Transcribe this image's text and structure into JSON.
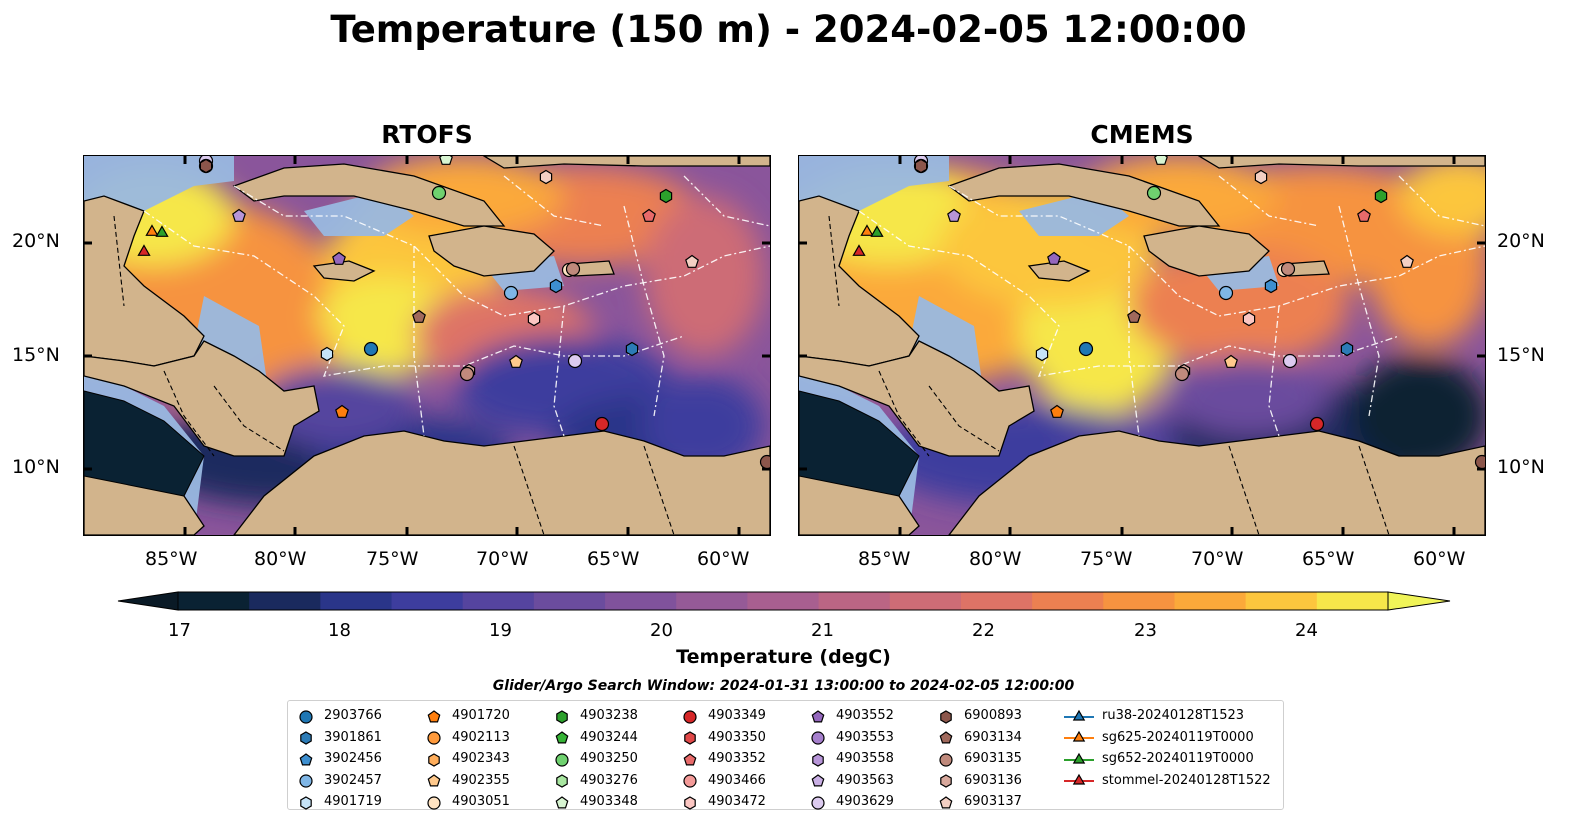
{
  "title": "Temperature (150 m) - 2024-02-05 12:00:00",
  "maps": [
    {
      "title": "RTOFS"
    },
    {
      "title": "CMEMS"
    }
  ],
  "lat_ticks": [
    "20°N",
    "15°N",
    "10°N"
  ],
  "lon_ticks": [
    "85°W",
    "80°W",
    "75°W",
    "70°W",
    "65°W",
    "60°W"
  ],
  "colorbar": {
    "label": "Temperature (degC)",
    "ticks": [
      "17",
      "18",
      "19",
      "20",
      "21",
      "22",
      "23",
      "24"
    ],
    "range": [
      16.75,
      24.5
    ],
    "colors": [
      "#0a2233",
      "#1a2a5e",
      "#2a3589",
      "#3d3d9e",
      "#55449f",
      "#6b4c9e",
      "#80529c",
      "#955a97",
      "#a85f90",
      "#bb6584",
      "#cd6c76",
      "#de7366",
      "#ec8051",
      "#f69340",
      "#fba93a",
      "#fcc63e",
      "#f6e74a"
    ],
    "extend_low_color": "#0a1a26",
    "extend_high_color": "#f0f458"
  },
  "search_window": "Glider/Argo Search Window: 2024-01-31 13:00:00 to 2024-02-05 12:00:00",
  "legend": {
    "columns": [
      [
        {
          "label": "2903766",
          "marker": "circle",
          "color": "#1f77b4"
        },
        {
          "label": "3901861",
          "marker": "hexagon",
          "color": "#2c7bb6"
        },
        {
          "label": "3902456",
          "marker": "pentagon",
          "color": "#3d8fd0"
        },
        {
          "label": "3902457",
          "marker": "circle",
          "color": "#7fb6e6"
        },
        {
          "label": "4901719",
          "marker": "hexagon",
          "color": "#c6e3f7"
        }
      ],
      [
        {
          "label": "4901720",
          "marker": "pentagon",
          "color": "#ff7f0e"
        },
        {
          "label": "4902113",
          "marker": "circle",
          "color": "#ff9a3c"
        },
        {
          "label": "4902343",
          "marker": "hexagon",
          "color": "#ffae5c"
        },
        {
          "label": "4902355",
          "marker": "pentagon",
          "color": "#ffc98c"
        },
        {
          "label": "4903051",
          "marker": "circle",
          "color": "#ffe3c2"
        }
      ],
      [
        {
          "label": "4903238",
          "marker": "hexagon",
          "color": "#2ca02c"
        },
        {
          "label": "4903244",
          "marker": "pentagon",
          "color": "#36b336"
        },
        {
          "label": "4903250",
          "marker": "circle",
          "color": "#6fd16f"
        },
        {
          "label": "4903276",
          "marker": "hexagon",
          "color": "#a8e6a0"
        },
        {
          "label": "4903348",
          "marker": "pentagon",
          "color": "#d8f5d2"
        }
      ],
      [
        {
          "label": "4903349",
          "marker": "circle",
          "color": "#d62728"
        },
        {
          "label": "4903350",
          "marker": "hexagon",
          "color": "#e04848"
        },
        {
          "label": "4903352",
          "marker": "pentagon",
          "color": "#e86a6a"
        },
        {
          "label": "4903466",
          "marker": "circle",
          "color": "#f39a98"
        },
        {
          "label": "4903472",
          "marker": "hexagon",
          "color": "#fbc6c2"
        }
      ],
      [
        {
          "label": "4903552",
          "marker": "pentagon",
          "color": "#9467bd"
        },
        {
          "label": "4903553",
          "marker": "circle",
          "color": "#a57fcc"
        },
        {
          "label": "4903558",
          "marker": "hexagon",
          "color": "#b795d8"
        },
        {
          "label": "4903563",
          "marker": "pentagon",
          "color": "#c9afe4"
        },
        {
          "label": "4903629",
          "marker": "circle",
          "color": "#dccbef"
        }
      ],
      [
        {
          "label": "6900893",
          "marker": "hexagon",
          "color": "#8c564b"
        },
        {
          "label": "6903134",
          "marker": "pentagon",
          "color": "#a0695c"
        },
        {
          "label": "6903135",
          "marker": "circle",
          "color": "#c08a7c"
        },
        {
          "label": "6903136",
          "marker": "hexagon",
          "color": "#d8a89c"
        },
        {
          "label": "6903137",
          "marker": "pentagon",
          "color": "#f3cfc3"
        }
      ],
      [
        {
          "label": "ru38-20240128T1523",
          "marker": "triangle",
          "color": "#1f77b4"
        },
        {
          "label": "sg625-20240119T0000",
          "marker": "triangle",
          "color": "#ff7f0e"
        },
        {
          "label": "sg652-20240119T0000",
          "marker": "triangle",
          "color": "#2ca02c"
        },
        {
          "label": "stommel-20240128T1522",
          "marker": "triangle",
          "color": "#d62728"
        }
      ]
    ]
  }
}
